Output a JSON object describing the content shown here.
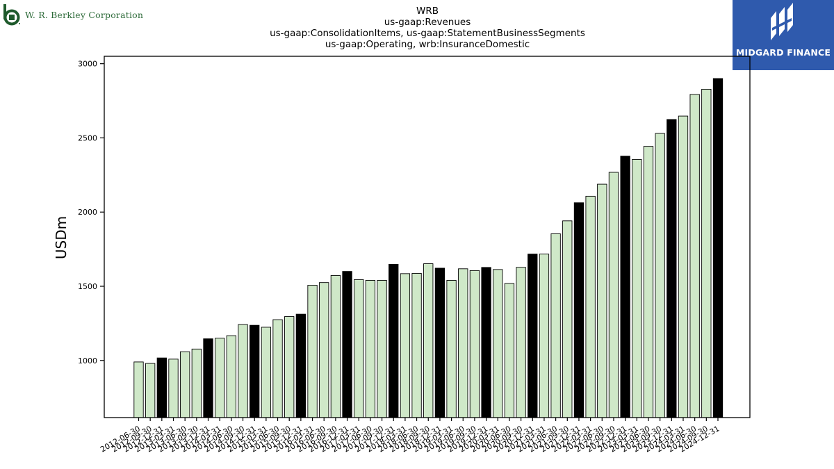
{
  "branding": {
    "left_company": "W. R. Berkley Corporation",
    "right_company": "MIDGARD FINANCE",
    "left_color": "#1f5a2c",
    "right_bg_color": "#2f5aad"
  },
  "chart_data": {
    "type": "bar",
    "title_lines": [
      "WRB",
      "us-gaap:Revenues",
      "us-gaap:ConsolidationItems, us-gaap:StatementBusinessSegments",
      "us-gaap:Operating, wrb:InsuranceDomestic"
    ],
    "ylabel": "USDm",
    "xlabel": "",
    "ylim": [
      615,
      3050
    ],
    "yticks": [
      1000,
      1500,
      2000,
      2500,
      3000
    ],
    "grid": false,
    "colors": {
      "quarter": "#cfe8c8",
      "year_end": "#000000",
      "edge": "#000000"
    },
    "categories": [
      "2012-06-30",
      "2012-09-30",
      "2012-12-31",
      "2013-03-31",
      "2013-06-30",
      "2013-09-30",
      "2013-12-31",
      "2014-03-31",
      "2014-06-30",
      "2014-09-30",
      "2014-12-31",
      "2015-03-31",
      "2015-06-30",
      "2015-09-30",
      "2015-12-31",
      "2016-03-31",
      "2016-06-30",
      "2016-09-30",
      "2016-12-31",
      "2017-03-31",
      "2017-06-30",
      "2017-09-30",
      "2017-12-31",
      "2018-03-31",
      "2018-06-30",
      "2018-09-30",
      "2018-12-31",
      "2019-03-31",
      "2019-06-30",
      "2019-09-30",
      "2019-12-31",
      "2020-03-31",
      "2020-06-30",
      "2020-09-30",
      "2020-12-31",
      "2021-03-31",
      "2021-06-30",
      "2021-09-30",
      "2021-12-31",
      "2022-03-31",
      "2022-06-30",
      "2022-09-30",
      "2022-12-31",
      "2023-03-31",
      "2023-06-30",
      "2023-09-30",
      "2023-12-31",
      "2024-03-31",
      "2024-06-30",
      "2024-09-30",
      "2024-12-31"
    ],
    "values": [
      990,
      980,
      1017,
      1009,
      1059,
      1077,
      1146,
      1150,
      1167,
      1242,
      1237,
      1224,
      1275,
      1296,
      1312,
      1507,
      1525,
      1573,
      1600,
      1545,
      1540,
      1540,
      1648,
      1585,
      1587,
      1652,
      1622,
      1540,
      1618,
      1606,
      1627,
      1613,
      1519,
      1628,
      1717,
      1717,
      1854,
      1941,
      2063,
      2107,
      2188,
      2268,
      2377,
      2355,
      2443,
      2530,
      2624,
      2647,
      2793,
      2828,
      2900
    ]
  }
}
